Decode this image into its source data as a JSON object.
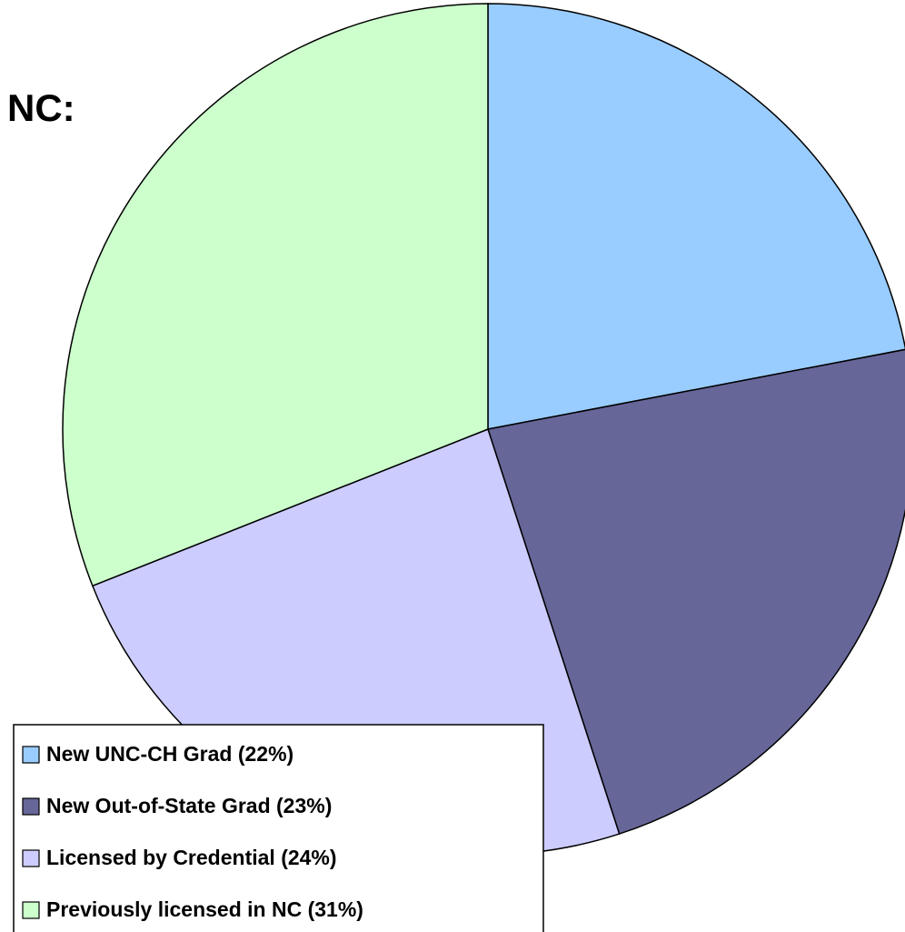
{
  "chart_data": {
    "type": "pie",
    "title": "NC:",
    "categories": [
      "New UNC-CH Grad (22%)",
      "New Out-of-State Grad (23%)",
      "Licensed by Credential (24%)",
      "Previously licensed in NC (31%)"
    ],
    "values": [
      22,
      23,
      24,
      31
    ],
    "colors": [
      "#99ccff",
      "#666699",
      "#ccccff",
      "#ccffcc"
    ],
    "legend": "bottom-left"
  }
}
